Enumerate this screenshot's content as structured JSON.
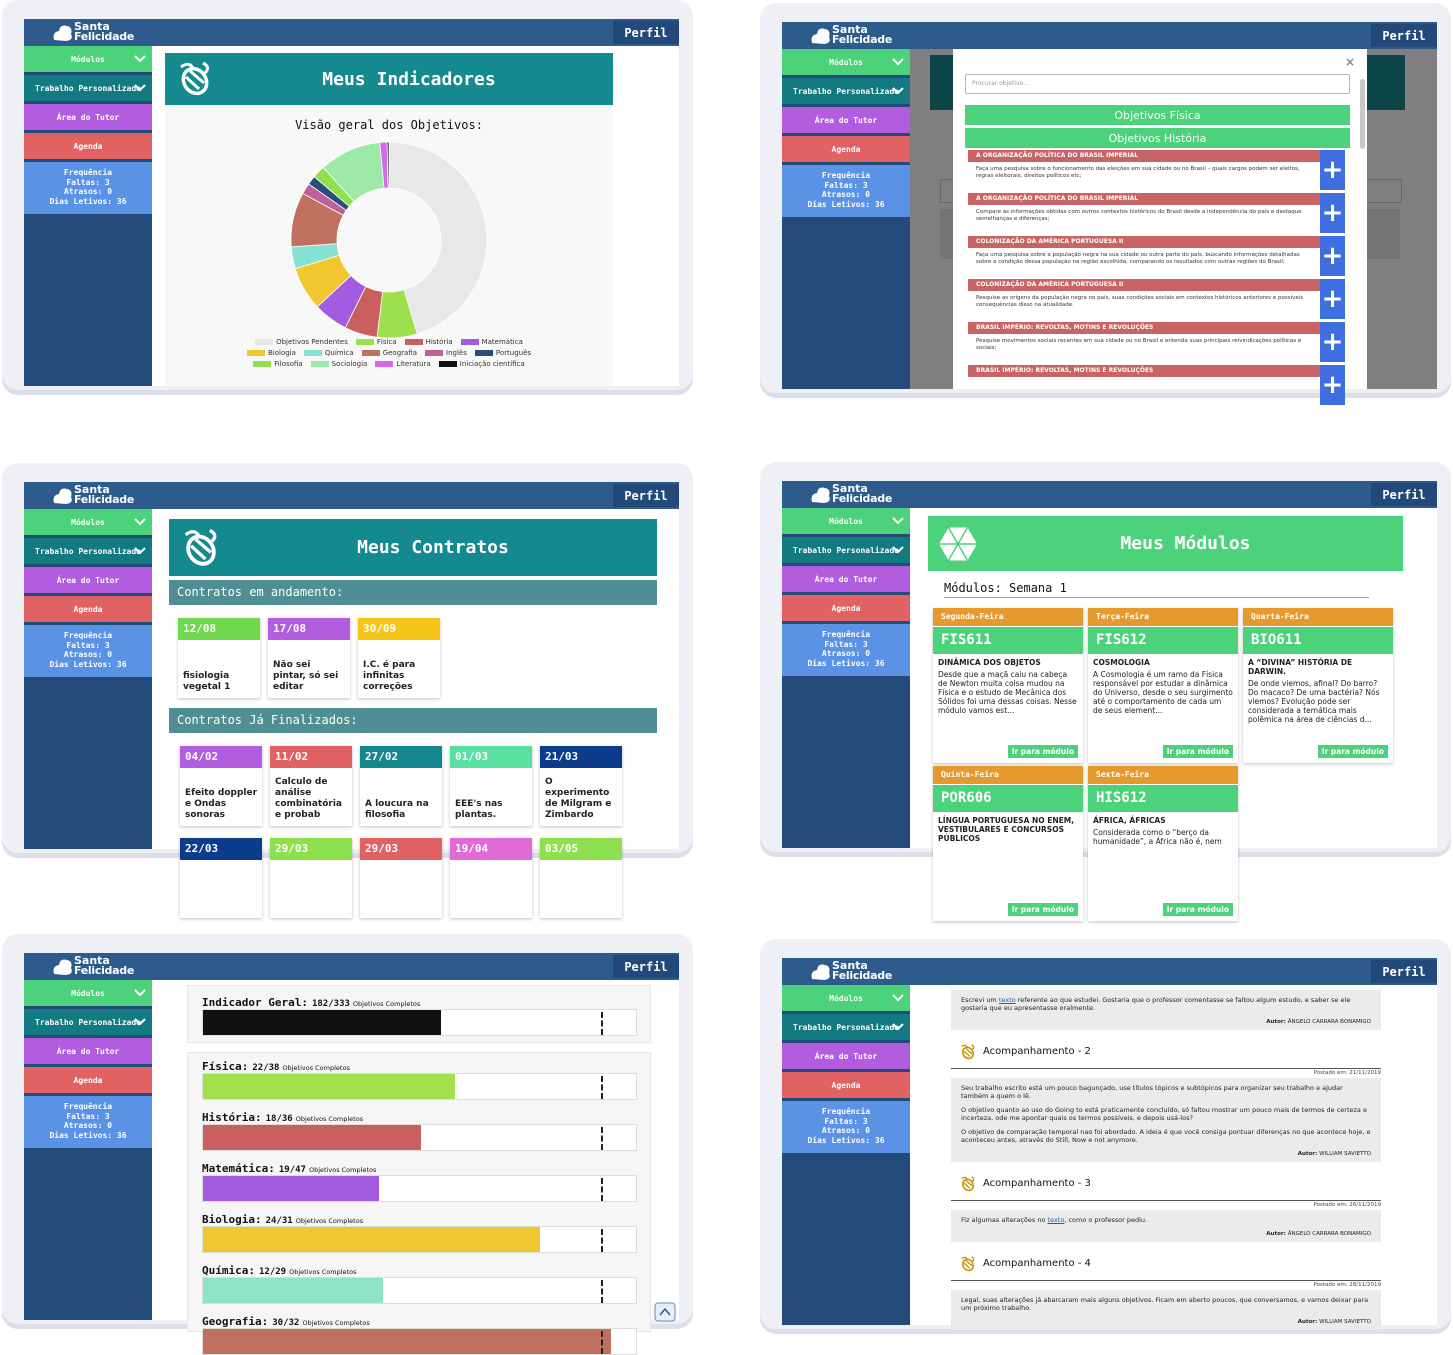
{
  "app": {
    "brand_top": "Santa",
    "brand_bottom": "Felicidade",
    "profile": "Perfil"
  },
  "sidebar": {
    "menu": [
      "Módulos",
      "Trabalho Personalizado",
      "Área do Tutor",
      "Agenda"
    ],
    "attendance_title": "Frequência",
    "attendance": [
      "Faltas: 3",
      "Atrasos: 0",
      "Dias Letivos: 36"
    ]
  },
  "indicators": {
    "title": "Meus Indicadores"
  },
  "chart_data": {
    "type": "donut",
    "title": "Visão geral dos Objetivos:",
    "categories": [
      "Objetivos Pendentes",
      "Física",
      "História",
      "Matemática",
      "Biologia",
      "Química",
      "Geografia",
      "Inglês",
      "Português",
      "Filosofia",
      "Sociologia",
      "Literatura",
      "Iniciação científica"
    ],
    "values": [
      151,
      22,
      18,
      19,
      24,
      12,
      30,
      6,
      5,
      7,
      34,
      4,
      1
    ],
    "colors": [
      "#e8e8e8",
      "#9de04e",
      "#c95f5f",
      "#a35be0",
      "#f0c72e",
      "#86e3d1",
      "#c0705e",
      "#c0609a",
      "#2a4e7a",
      "#8fe04e",
      "#9ceaa6",
      "#d46ae8",
      "#111111"
    ]
  },
  "modal": {
    "search_placeholder": "Procurar objetivo...",
    "close": "×",
    "buttons": [
      "Objetivos Física",
      "Objetivos História"
    ],
    "add": "+",
    "items": [
      {
        "title": "A ORGANIZAÇÃO POLÍTICA DO BRASIL IMPERIAL",
        "text": "Faça uma pesquisa sobre o funcionamento das eleições em sua cidade ou no Brasil – quais cargos podem ser eleitos, regras eleitorais, direitos políticos etc;"
      },
      {
        "title": "A ORGANIZAÇÃO POLÍTICA DO BRASIL IMPERIAL",
        "text": "Compare as informações obtidas com outros contextos históricos do Brasil desde a independência do país e destaque semelhanças e diferenças;"
      },
      {
        "title": "COLONIZAÇÃO DA AMÉRICA PORTUGUESA II",
        "text": "Faça uma pesquisa sobre a população negra na sua cidade ou outra parte do país, buscando informações detalhadas sobre a condição dessa população na região escolhida, comparando os resultados com outras regiões do Brasil;"
      },
      {
        "title": "COLONIZAÇÃO DA AMÉRICA PORTUGUESA II",
        "text": "Pesquise as origens da população negra no país, suas condições sociais em contextos históricos anteriores e possíveis consequências disso na atualidade."
      },
      {
        "title": "BRASIL IMPÉRIO: REVOLTAS, MOTINS E REVOLUÇÕES",
        "text": "Pesquise movimentos sociais recentes em sua cidade ou no Brasil e entenda suas principais reivindicações políticas e sociais;"
      },
      {
        "title": "BRASIL IMPÉRIO: REVOLTAS, MOTINS E REVOLUÇÕES"
      }
    ]
  },
  "contracts": {
    "title": "Meus Contratos",
    "ongoing_label": "Contratos em andamento:",
    "finished_label": "Contratos Já Finalizados:",
    "ongoing": [
      {
        "date": "12/08",
        "text": "fisiologia vegetal 1",
        "color": "#6fd84c"
      },
      {
        "date": "17/08",
        "text": "Não sei pintar, só sei editar",
        "color": "#b25de0"
      },
      {
        "date": "30/09",
        "text": "I.C. é para infinitas correções",
        "color": "#f5c518"
      }
    ],
    "finished": [
      {
        "date": "04/02",
        "text": "Efeito doppler e Ondas sonoras",
        "color": "#b25de0"
      },
      {
        "date": "11/02",
        "text": "Calculo de análise combinatória e probab",
        "color": "#e06262"
      },
      {
        "date": "27/02",
        "text": "A loucura na filosofia",
        "color": "#13878c"
      },
      {
        "date": "01/03",
        "text": "EEE's nas plantas.",
        "color": "#58e0a0"
      },
      {
        "date": "21/03",
        "text": "O experimento de Milgram e Zimbardo",
        "color": "#0e3c8c"
      },
      {
        "date": "22/03",
        "color": "#0e3c8c"
      },
      {
        "date": "29/03",
        "color": "#8fe04e"
      },
      {
        "date": "29/03",
        "color": "#e06262"
      },
      {
        "date": "19/04",
        "color": "#e06ad6"
      },
      {
        "date": "03/05",
        "color": "#8fe04e"
      }
    ]
  },
  "modules": {
    "title": "Meus Módulos",
    "week": "Módulos: Semana 1",
    "button": "Ir para módulo",
    "cards": [
      {
        "day": "Segunda-Feira",
        "code": "FIS611",
        "title": "DINÂMICA DOS OBJETOS",
        "text": "Desde que a maçã caiu na cabeça de Newton muita coisa mudou na Física e o estudo de Mecânica dos Sólidos foi uma dessas coisas. Nesse módulo vamos est..."
      },
      {
        "day": "Terça-Feira",
        "code": "FIS612",
        "title": "COSMOLOGIA",
        "text": "A Cosmologia é um ramo da Física responsável por estudar a dinâmica do Universo, desde o seu surgimento até o comportamento de cada um de seus element..."
      },
      {
        "day": "Quarta-Feira",
        "code": "BIO611",
        "title": "A “DIVINA” HISTÓRIA DE DARWIN.",
        "text": "De onde viemos, afinal? Do barro? Do macaco? De uma bactéria? Nós viemos? Evolução pode ser considerada a temática mais polêmica na área de ciências d..."
      },
      {
        "day": "Quinta-Feira",
        "code": "POR606",
        "title": "LÍNGUA PORTUGUESA NO ENEM, VESTIBULARES E CONCURSOS PÚBLICOS"
      },
      {
        "day": "Sexta-Feira",
        "code": "HIS612",
        "title": "ÁFRICA, ÁFRICAS",
        "text": "Considerada como o “berço da humanidade”, a África não é, nem"
      }
    ]
  },
  "progress": {
    "separator": "/",
    "suffix": "Objetivos Completos",
    "general": {
      "name": "Indicador Geral:",
      "done": 182,
      "total": 333,
      "color": "#111111"
    },
    "subjects": [
      {
        "name": "Física:",
        "done": 22,
        "total": 38,
        "color": "#a2e04e"
      },
      {
        "name": "História:",
        "done": 18,
        "total": 36,
        "color": "#c95f5f"
      },
      {
        "name": "Matemática:",
        "done": 19,
        "total": 47,
        "color": "#a35be0"
      },
      {
        "name": "Biologia:",
        "done": 24,
        "total": 31,
        "color": "#f0c72e"
      },
      {
        "name": "Química:",
        "done": 12,
        "total": 29,
        "color": "#8de3c6"
      },
      {
        "name": "Geografia:",
        "done": 30,
        "total": 32,
        "color": "#c0705e"
      }
    ]
  },
  "feed": {
    "posted_label": "Postado em: ",
    "author_label": "Autor: ",
    "items": [
      {
        "paragraphs": [
          [
            "Escrevi um ",
            {
              "text": "texto",
              "link": true
            },
            " referente ao que estudei. Gostaria que o professor comentasse se faltou algum estudo, e saber se ele gostaria que eu apresentasse oralmente."
          ]
        ],
        "author": "ÂNGELO CARRARA BONAMIGO"
      },
      {
        "title": "Acompanhamento - 2",
        "date": "21/11/2019",
        "paragraphs": [
          [
            "Seu trabalho escrito está um pouco bagunçado, use títulos tópicos e subtópicos para organizar seu trabalho e ajudar também a quem o lê."
          ],
          [
            "O objetivo quanto ao uso do Going to está praticamente concluído, só faltou mostrar um pouco mais de termos de certeza e incerteza, ode me apontar quais os termos possíveis, e depois usá-los?"
          ],
          [
            "O objetivo de comparação temporal nao foi abordado. A ideia é que você consiga pontuar diferenças no que acontece hoje, e aconteceu antes, através do Still, Now e not anymore."
          ]
        ],
        "author": "WILLIAM SAVIETTO"
      },
      {
        "title": "Acompanhamento - 3",
        "date": "26/11/2019",
        "paragraphs": [
          [
            "Fiz algumas alterações no ",
            {
              "text": "texto",
              "link": true
            },
            ", como o professor pediu."
          ]
        ],
        "author": "ÂNGELO CARRARA BONAMIGO"
      },
      {
        "title": "Acompanhamento - 4",
        "date": "28/11/2019",
        "paragraphs": [
          [
            "Legal, suas alterações já abarcaram mais alguns objetivos. Ficam em aberto poucos, que conversamos, e vamos deixar para um próximo trabalho."
          ]
        ],
        "author": "WILLIAM SAVIETTO"
      }
    ]
  }
}
